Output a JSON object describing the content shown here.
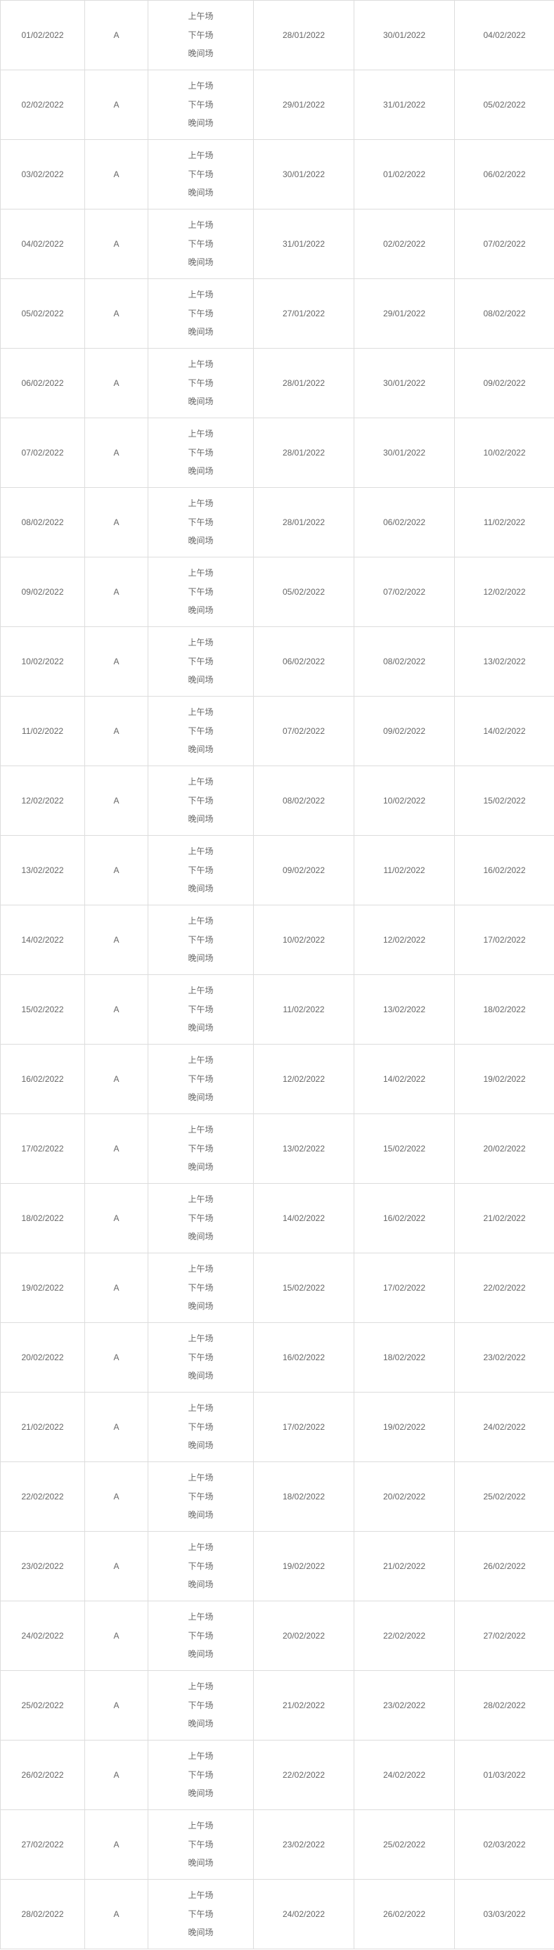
{
  "table": {
    "type": "table",
    "background_color": "#ffffff",
    "border_color": "#dddddd",
    "text_color": "#666666",
    "font_size": 12,
    "columns": [
      {
        "key": "date1",
        "width": 120
      },
      {
        "key": "letter",
        "width": 90
      },
      {
        "key": "sessions",
        "width": 150
      },
      {
        "key": "date2",
        "width": 143
      },
      {
        "key": "date3",
        "width": 143
      },
      {
        "key": "date4",
        "width": 142
      }
    ],
    "session_labels": [
      "上午场",
      "下午场",
      "晚间场"
    ],
    "rows": [
      {
        "date1": "01/02/2022",
        "letter": "A",
        "date2": "28/01/2022",
        "date3": "30/01/2022",
        "date4": "04/02/2022"
      },
      {
        "date1": "02/02/2022",
        "letter": "A",
        "date2": "29/01/2022",
        "date3": "31/01/2022",
        "date4": "05/02/2022"
      },
      {
        "date1": "03/02/2022",
        "letter": "A",
        "date2": "30/01/2022",
        "date3": "01/02/2022",
        "date4": "06/02/2022"
      },
      {
        "date1": "04/02/2022",
        "letter": "A",
        "date2": "31/01/2022",
        "date3": "02/02/2022",
        "date4": "07/02/2022"
      },
      {
        "date1": "05/02/2022",
        "letter": "A",
        "date2": "27/01/2022",
        "date3": "29/01/2022",
        "date4": "08/02/2022"
      },
      {
        "date1": "06/02/2022",
        "letter": "A",
        "date2": "28/01/2022",
        "date3": "30/01/2022",
        "date4": "09/02/2022"
      },
      {
        "date1": "07/02/2022",
        "letter": "A",
        "date2": "28/01/2022",
        "date3": "30/01/2022",
        "date4": "10/02/2022"
      },
      {
        "date1": "08/02/2022",
        "letter": "A",
        "date2": "28/01/2022",
        "date3": "06/02/2022",
        "date4": "11/02/2022"
      },
      {
        "date1": "09/02/2022",
        "letter": "A",
        "date2": "05/02/2022",
        "date3": "07/02/2022",
        "date4": "12/02/2022"
      },
      {
        "date1": "10/02/2022",
        "letter": "A",
        "date2": "06/02/2022",
        "date3": "08/02/2022",
        "date4": "13/02/2022"
      },
      {
        "date1": "11/02/2022",
        "letter": "A",
        "date2": "07/02/2022",
        "date3": "09/02/2022",
        "date4": "14/02/2022"
      },
      {
        "date1": "12/02/2022",
        "letter": "A",
        "date2": "08/02/2022",
        "date3": "10/02/2022",
        "date4": "15/02/2022"
      },
      {
        "date1": "13/02/2022",
        "letter": "A",
        "date2": "09/02/2022",
        "date3": "11/02/2022",
        "date4": "16/02/2022"
      },
      {
        "date1": "14/02/2022",
        "letter": "A",
        "date2": "10/02/2022",
        "date3": "12/02/2022",
        "date4": "17/02/2022"
      },
      {
        "date1": "15/02/2022",
        "letter": "A",
        "date2": "11/02/2022",
        "date3": "13/02/2022",
        "date4": "18/02/2022"
      },
      {
        "date1": "16/02/2022",
        "letter": "A",
        "date2": "12/02/2022",
        "date3": "14/02/2022",
        "date4": "19/02/2022"
      },
      {
        "date1": "17/02/2022",
        "letter": "A",
        "date2": "13/02/2022",
        "date3": "15/02/2022",
        "date4": "20/02/2022"
      },
      {
        "date1": "18/02/2022",
        "letter": "A",
        "date2": "14/02/2022",
        "date3": "16/02/2022",
        "date4": "21/02/2022"
      },
      {
        "date1": "19/02/2022",
        "letter": "A",
        "date2": "15/02/2022",
        "date3": "17/02/2022",
        "date4": "22/02/2022"
      },
      {
        "date1": "20/02/2022",
        "letter": "A",
        "date2": "16/02/2022",
        "date3": "18/02/2022",
        "date4": "23/02/2022"
      },
      {
        "date1": "21/02/2022",
        "letter": "A",
        "date2": "17/02/2022",
        "date3": "19/02/2022",
        "date4": "24/02/2022"
      },
      {
        "date1": "22/02/2022",
        "letter": "A",
        "date2": "18/02/2022",
        "date3": "20/02/2022",
        "date4": "25/02/2022"
      },
      {
        "date1": "23/02/2022",
        "letter": "A",
        "date2": "19/02/2022",
        "date3": "21/02/2022",
        "date4": "26/02/2022"
      },
      {
        "date1": "24/02/2022",
        "letter": "A",
        "date2": "20/02/2022",
        "date3": "22/02/2022",
        "date4": "27/02/2022"
      },
      {
        "date1": "25/02/2022",
        "letter": "A",
        "date2": "21/02/2022",
        "date3": "23/02/2022",
        "date4": "28/02/2022"
      },
      {
        "date1": "26/02/2022",
        "letter": "A",
        "date2": "22/02/2022",
        "date3": "24/02/2022",
        "date4": "01/03/2022"
      },
      {
        "date1": "27/02/2022",
        "letter": "A",
        "date2": "23/02/2022",
        "date3": "25/02/2022",
        "date4": "02/03/2022"
      },
      {
        "date1": "28/02/2022",
        "letter": "A",
        "date2": "24/02/2022",
        "date3": "26/02/2022",
        "date4": "03/03/2022"
      }
    ]
  }
}
